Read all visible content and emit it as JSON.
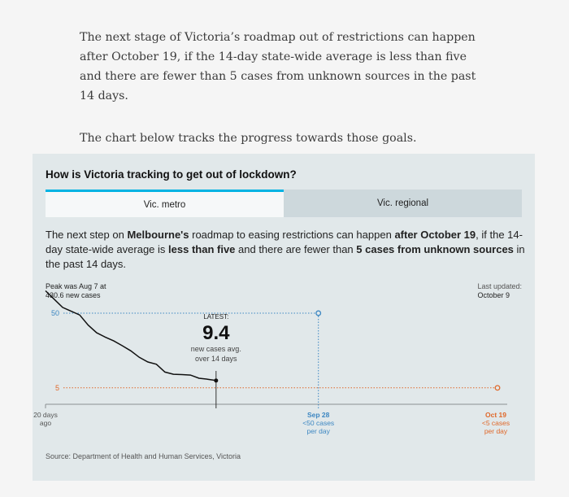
{
  "article": {
    "para1": "The next stage of Victoria’s roadmap out of restrictions can happen after October 19, if the 14-day state-wide average is less than five and there are fewer than 5 cases from unknown sources in the past 14 days.",
    "para2": "The chart below tracks the progress towards those goals."
  },
  "widget": {
    "title": "How is Victoria tracking to get out of lockdown?",
    "tabs": [
      {
        "label": "Vic. metro",
        "active": true
      },
      {
        "label": "Vic. regional",
        "active": false
      }
    ],
    "description": {
      "t1": "The next step on ",
      "b1": "Melbourne's",
      "t2": " roadmap to easing restrictions can happen ",
      "b2": "after October 19",
      "t3": ", if the 14-day state-wide average is ",
      "b3": "less than five",
      "t4": " and there are fewer than ",
      "b4": "5 cases from unknown sources",
      "t5": " in the past 14 days."
    },
    "peak": {
      "line1": "Peak was Aug 7 at",
      "line2": "430.6 new cases"
    },
    "last_updated": {
      "label": "Last updated:",
      "date": "October 9"
    },
    "source": "Source: Department of Health and Human Services, Victoria",
    "colors": {
      "accent": "#00b3e3",
      "target50": "#3d87c2",
      "target5": "#e0682a"
    }
  },
  "chart_data": {
    "type": "line",
    "title": "How is Victoria tracking to get out of lockdown?",
    "series": [
      {
        "name": "14-day average new cases (Vic. metro)",
        "x": [
          -20,
          -19,
          -18,
          -17,
          -16,
          -15,
          -14,
          -13,
          -12,
          -11,
          -10,
          -9,
          -8,
          -7,
          -6,
          -5,
          -4,
          -3,
          -2,
          -1,
          0
        ],
        "values": [
          63.5,
          58.5,
          53.5,
          51.2,
          48.9,
          42.8,
          38.2,
          35.6,
          33.3,
          30.4,
          27.3,
          23.4,
          20.6,
          19.2,
          14.5,
          13.2,
          13.0,
          12.7,
          10.8,
          10.2,
          9.4
        ]
      }
    ],
    "latest": {
      "label": "LATEST:",
      "value": "9.4",
      "unit_line1": "new cases avg.",
      "unit_line2": "over 14 days"
    },
    "targets": [
      {
        "value": 50,
        "label": "50",
        "date": "Sep 28",
        "desc_line1": "<50 cases",
        "desc_line2": "per day",
        "x": 12
      },
      {
        "value": 5,
        "label": "5",
        "date": "Oct 19",
        "desc_line1": "<5 cases",
        "desc_line2": "per day",
        "x": 33
      }
    ],
    "x_start_label": {
      "line1": "20 days",
      "line2": "ago"
    },
    "xlim": [
      -20,
      33
    ],
    "ylim": [
      0,
      65
    ]
  }
}
